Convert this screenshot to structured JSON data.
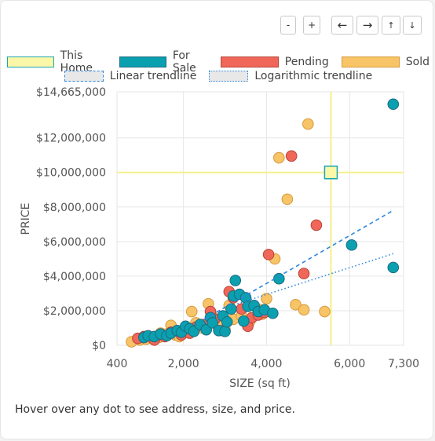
{
  "controls": {
    "zoom_out": "-",
    "zoom_in": "+",
    "pan_left": "←",
    "pan_right": "→",
    "pan_up": "↑",
    "pan_down": "↓"
  },
  "legend": {
    "this_home": "This Home",
    "for_sale": "For Sale",
    "pending": "Pending",
    "sold": "Sold",
    "linear": "Linear trendline",
    "log": "Logarithmic trendline"
  },
  "colors": {
    "this_home": "#fbf7a8",
    "this_home_border": "#1aa5b5",
    "for_sale": "#0aa0b0",
    "for_sale_border": "#1e6b80",
    "pending": "#f0675a",
    "pending_border": "#b94437",
    "sold": "#f7c468",
    "sold_border": "#d89a3a",
    "trend": "#2e86de"
  },
  "footer": "Hover over any dot to see address, size, and price.",
  "chart_data": {
    "type": "scatter",
    "xlabel": "SIZE (sq ft)",
    "ylabel": "PRICE",
    "xlim": [
      400,
      7300
    ],
    "ylim": [
      0,
      14665000
    ],
    "x_ticks": [
      400,
      2000,
      4000,
      6000,
      7300
    ],
    "x_tick_labels": [
      "400",
      "2,000",
      "4,000",
      "6,000",
      "7,300"
    ],
    "y_ticks": [
      0,
      2000000,
      4000000,
      6000000,
      8000000,
      10000000,
      12000000,
      14665000
    ],
    "y_tick_labels": [
      "$0",
      "$2,000,000",
      "$4,000,000",
      "$6,000,000",
      "$8,000,000",
      "$10,000,000",
      "$12,000,000",
      "$14,665,000"
    ],
    "grid": true,
    "this_home": {
      "x": 5550,
      "y": 10000000
    },
    "series": [
      {
        "name": "Sold",
        "points": [
          [
            750,
            200000
          ],
          [
            950,
            300000
          ],
          [
            1100,
            350000
          ],
          [
            1250,
            400000
          ],
          [
            1400,
            450000
          ],
          [
            1450,
            700000
          ],
          [
            1600,
            650000
          ],
          [
            1700,
            1150000
          ],
          [
            1800,
            600000
          ],
          [
            1900,
            500000
          ],
          [
            2000,
            800000
          ],
          [
            2100,
            900000
          ],
          [
            2200,
            1950000
          ],
          [
            2300,
            1300000
          ],
          [
            2450,
            1000000
          ],
          [
            2600,
            2400000
          ],
          [
            2700,
            1650000
          ],
          [
            2800,
            1200000
          ],
          [
            2900,
            1100000
          ],
          [
            3000,
            900000
          ],
          [
            3100,
            2300000
          ],
          [
            3200,
            1500000
          ],
          [
            3400,
            1700000
          ],
          [
            3600,
            1400000
          ],
          [
            3800,
            2100000
          ],
          [
            3900,
            1800000
          ],
          [
            4000,
            2700000
          ],
          [
            4200,
            5000000
          ],
          [
            4300,
            10850000
          ],
          [
            4500,
            8450000
          ],
          [
            4700,
            2350000
          ],
          [
            4900,
            2050000
          ],
          [
            5000,
            12800000
          ],
          [
            5400,
            1950000
          ]
        ]
      },
      {
        "name": "Pending",
        "points": [
          [
            900,
            400000
          ],
          [
            1050,
            500000
          ],
          [
            1300,
            300000
          ],
          [
            1550,
            500000
          ],
          [
            1700,
            750000
          ],
          [
            1950,
            600000
          ],
          [
            2150,
            700000
          ],
          [
            2300,
            1050000
          ],
          [
            2500,
            1200000
          ],
          [
            2650,
            1950000
          ],
          [
            2750,
            1500000
          ],
          [
            2950,
            850000
          ],
          [
            3100,
            3100000
          ],
          [
            3200,
            2750000
          ],
          [
            3400,
            2100000
          ],
          [
            3550,
            1100000
          ],
          [
            3650,
            1600000
          ],
          [
            3800,
            1750000
          ],
          [
            3950,
            1900000
          ],
          [
            4050,
            5250000
          ],
          [
            4600,
            10950000
          ],
          [
            4900,
            4150000
          ],
          [
            5200,
            6950000
          ]
        ]
      },
      {
        "name": "For Sale",
        "points": [
          [
            1050,
            450000
          ],
          [
            1150,
            550000
          ],
          [
            1300,
            500000
          ],
          [
            1450,
            650000
          ],
          [
            1600,
            550000
          ],
          [
            1700,
            700000
          ],
          [
            1850,
            850000
          ],
          [
            1950,
            750000
          ],
          [
            2050,
            1100000
          ],
          [
            2150,
            950000
          ],
          [
            2250,
            800000
          ],
          [
            2400,
            1200000
          ],
          [
            2550,
            900000
          ],
          [
            2650,
            1600000
          ],
          [
            2700,
            1300000
          ],
          [
            2850,
            850000
          ],
          [
            2950,
            1700000
          ],
          [
            3000,
            800000
          ],
          [
            3050,
            1350000
          ],
          [
            3150,
            2100000
          ],
          [
            3200,
            2850000
          ],
          [
            3250,
            3750000
          ],
          [
            3350,
            2950000
          ],
          [
            3450,
            1400000
          ],
          [
            3500,
            2750000
          ],
          [
            3550,
            2250000
          ],
          [
            3700,
            2300000
          ],
          [
            3800,
            1950000
          ],
          [
            3950,
            2050000
          ],
          [
            4150,
            1850000
          ],
          [
            4300,
            3850000
          ],
          [
            6050,
            5800000
          ],
          [
            7050,
            4500000
          ],
          [
            7050,
            13950000
          ]
        ]
      }
    ],
    "trendlines": [
      {
        "name": "Linear trendline",
        "style": "dashed",
        "points": [
          [
            2500,
            1500000
          ],
          [
            7050,
            7800000
          ]
        ]
      },
      {
        "name": "Logarithmic trendline",
        "style": "dotted",
        "points": [
          [
            3300,
            2400000
          ],
          [
            7050,
            5300000
          ]
        ]
      }
    ]
  }
}
